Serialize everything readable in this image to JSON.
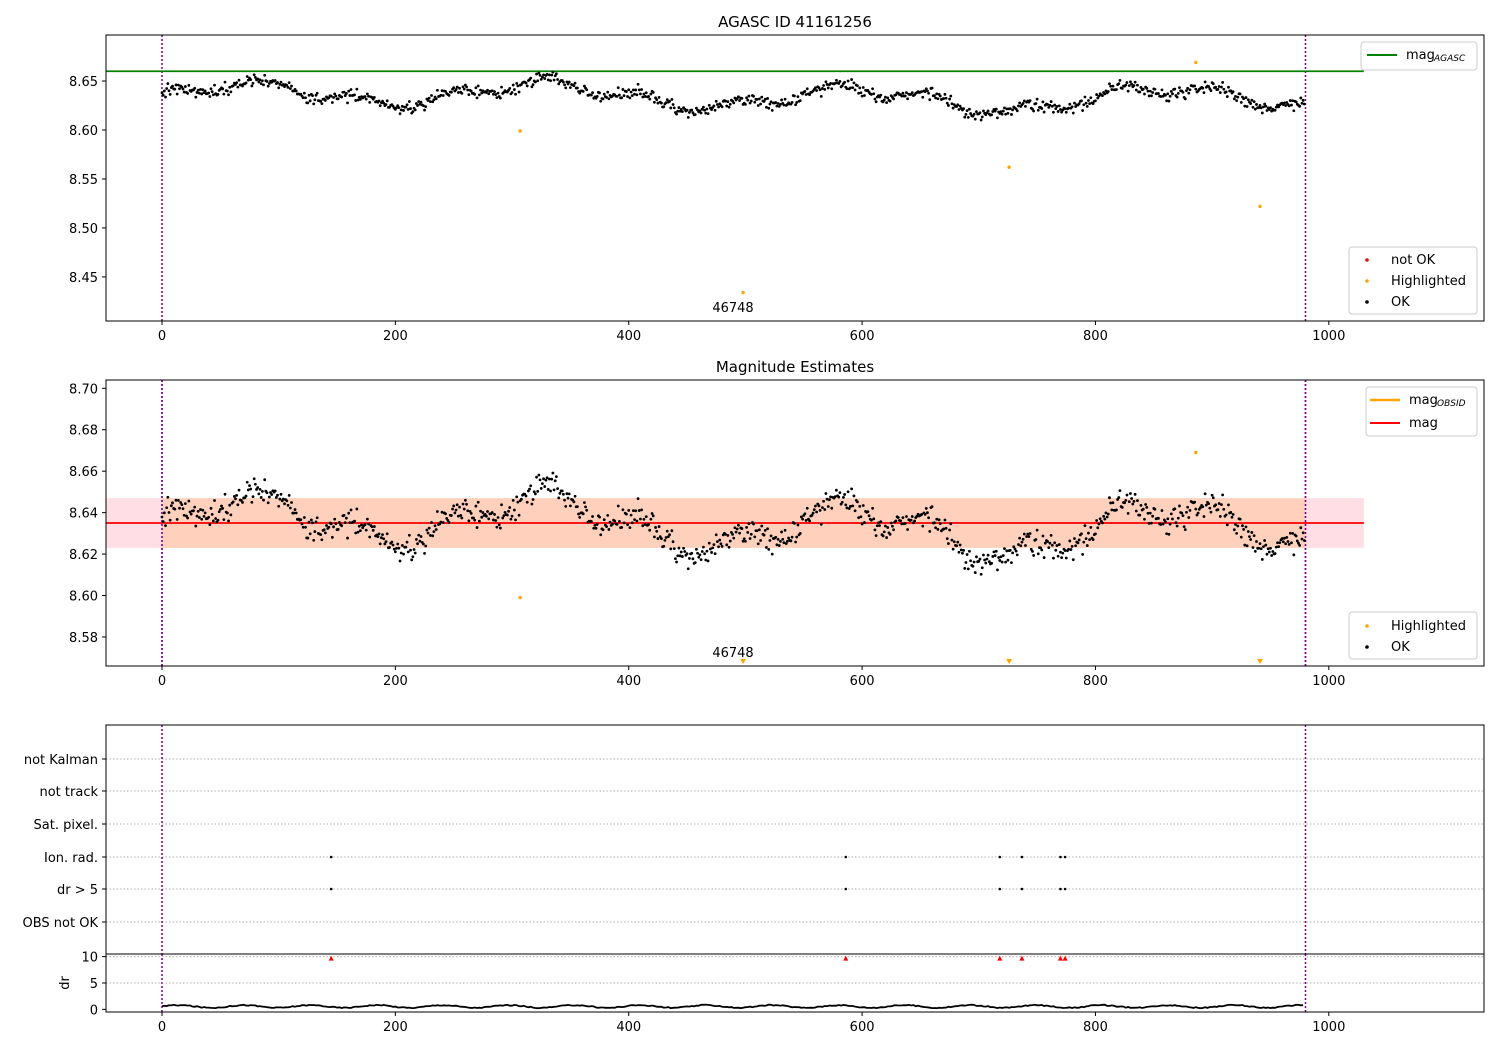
{
  "chart_data": [
    {
      "panel": "agasc",
      "type": "scatter",
      "title": "AGASC ID 41161256",
      "xlim": [
        -48,
        1133
      ],
      "ylim": [
        8.405,
        8.697
      ],
      "xticks": [
        0,
        200,
        400,
        600,
        800,
        1000
      ],
      "yticks": [
        8.45,
        8.5,
        8.55,
        8.6,
        8.65
      ],
      "grid": false,
      "vlines": [
        0,
        980
      ],
      "vline_color": "#800080",
      "hline": {
        "y": 8.66,
        "x_range": [
          -48,
          1030
        ],
        "color": "#008000",
        "label": "mag",
        "label_sub": "AGASC"
      },
      "series_summary": {
        "OK": {
          "color": "#000000",
          "n_points": 980,
          "x_range": [
            0,
            980
          ],
          "y_range": [
            8.605,
            8.665
          ],
          "mean": 8.634,
          "note": "values oscillate around the mean"
        },
        "not OK": {
          "color": "#ff0000",
          "points": []
        }
      },
      "highlighted": {
        "color": "#ffa500",
        "points": [
          [
            307,
            8.599
          ],
          [
            498,
            8.434
          ],
          [
            726,
            8.562
          ],
          [
            886,
            8.669
          ],
          [
            941,
            8.522
          ]
        ]
      },
      "annotation": {
        "text": "46748",
        "x": 490,
        "y": 8.416
      },
      "legend_position": "top-right (line) and bottom-right (points)",
      "legend": [
        "not OK",
        "Highlighted",
        "OK"
      ]
    },
    {
      "panel": "estimates",
      "type": "scatter",
      "title": "Magnitude Estimates",
      "xlim": [
        -48,
        1133
      ],
      "ylim": [
        8.566,
        8.704
      ],
      "xticks": [
        0,
        200,
        400,
        600,
        800,
        1000
      ],
      "yticks": [
        8.58,
        8.6,
        8.62,
        8.64,
        8.66,
        8.68,
        8.7
      ],
      "grid": false,
      "vlines": [
        0,
        980
      ],
      "mag": {
        "value": 8.635,
        "band": [
          8.623,
          8.647
        ],
        "x_range": [
          -48,
          1030
        ],
        "color": "#ff0000",
        "label": "mag"
      },
      "mag_obsid": {
        "value": 8.635,
        "band": [
          8.623,
          8.647
        ],
        "x_range": [
          0,
          980
        ],
        "color": "#ffa500",
        "label": "mag",
        "label_sub": "OBSID"
      },
      "highlighted": {
        "color": "#ffa500",
        "points": [
          [
            307,
            8.599
          ],
          [
            886,
            8.669
          ]
        ],
        "below_axis_markers": [
          498,
          726,
          941
        ]
      },
      "annotation": {
        "text": "46748",
        "x": 490,
        "y": 8.572
      },
      "legend_position": "top-right (lines) and bottom-right (points)",
      "legend": [
        "mag_OBSID",
        "mag",
        "Highlighted",
        "OK"
      ]
    },
    {
      "panel": "flags",
      "type": "scatter",
      "categories": [
        "not Kalman",
        "not track",
        "Sat. pixel.",
        "Ion. rad.",
        "dr > 5",
        "OBS not OK"
      ],
      "flagged_x": {
        "Ion. rad.": [
          145,
          586,
          718,
          737,
          770,
          774
        ],
        "dr > 5": [
          145,
          586,
          718,
          737,
          770,
          774
        ]
      },
      "xlim": [
        -48,
        1133
      ],
      "vlines": [
        0,
        980
      ],
      "grid": "horizontal dotted"
    },
    {
      "panel": "dr",
      "type": "line",
      "ylabel": "dr",
      "ylim": [
        -0.5,
        10.5
      ],
      "yticks": [
        0,
        5,
        10
      ],
      "xticks": [
        0,
        200,
        400,
        600,
        800,
        1000
      ],
      "xlim": [
        -48,
        1133
      ],
      "baseline_range": [
        0.0,
        1.0
      ],
      "clipped_markers_at_10": [
        145,
        586,
        718,
        737,
        770,
        774
      ],
      "vlines": [
        0,
        980
      ]
    }
  ]
}
